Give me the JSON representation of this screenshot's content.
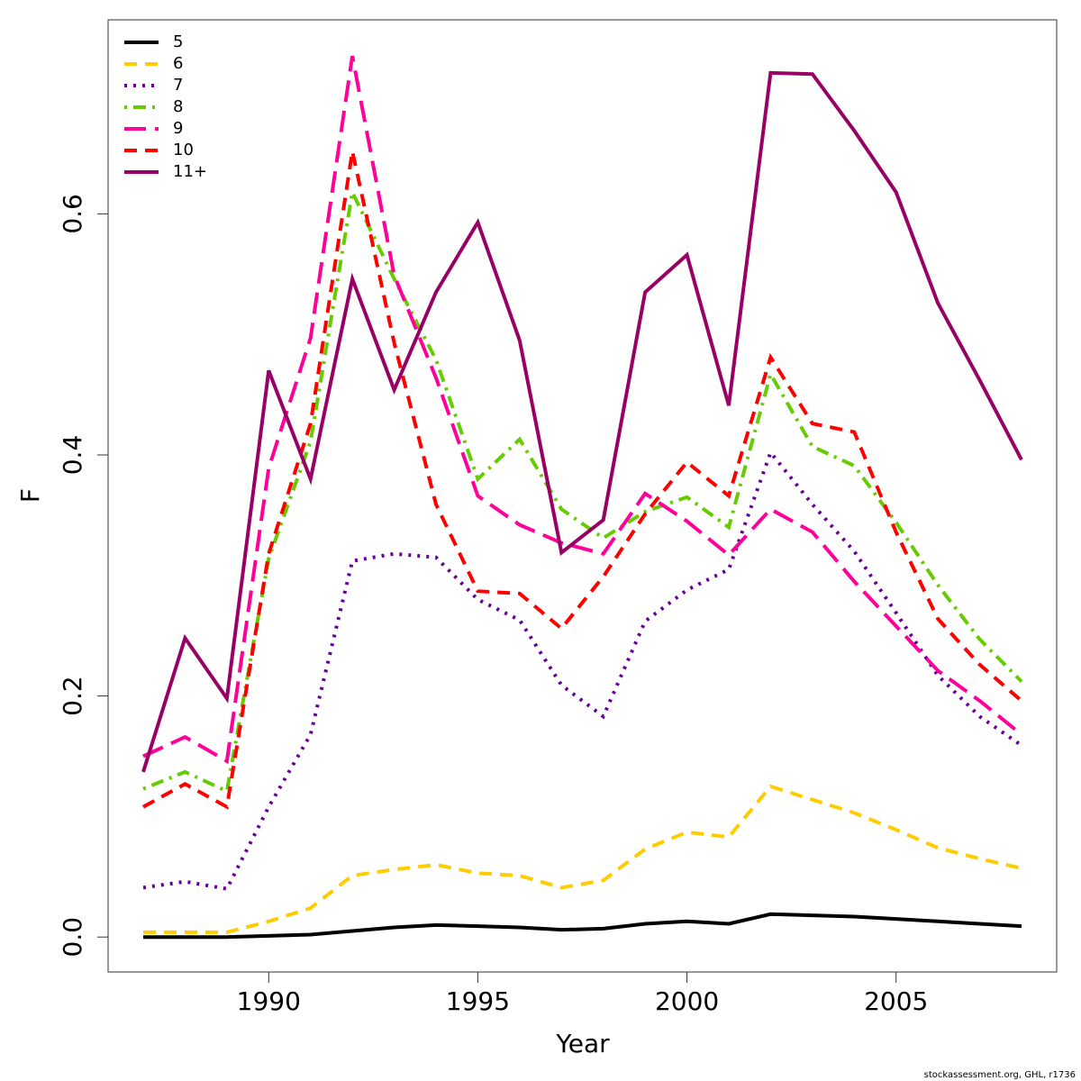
{
  "chart_data": {
    "type": "line",
    "x_label": "Year",
    "y_label": "F",
    "footer": "stockassessment.org, GHL, r1736",
    "x": [
      1987,
      1988,
      1989,
      1990,
      1991,
      1992,
      1993,
      1994,
      1995,
      1996,
      1997,
      1998,
      1999,
      2000,
      2001,
      2002,
      2003,
      2004,
      2005,
      2006,
      2007,
      2008
    ],
    "series": [
      {
        "name": "5",
        "color": "#000000",
        "linestyle": "solid",
        "values": [
          0,
          0,
          0,
          0.001,
          0.002,
          0.005,
          0.008,
          0.01,
          0.009,
          0.008,
          0.006,
          0.007,
          0.011,
          0.013,
          0.011,
          0.019,
          0.018,
          0.017,
          0.015,
          0.013,
          0.011,
          0.009
        ]
      },
      {
        "name": "6",
        "color": "#ffcc00",
        "linestyle": "dashed",
        "values": [
          0.004,
          0.004,
          0.004,
          0.013,
          0.024,
          0.051,
          0.056,
          0.06,
          0.053,
          0.051,
          0.041,
          0.047,
          0.073,
          0.087,
          0.083,
          0.125,
          0.114,
          0.103,
          0.089,
          0.074,
          0.065,
          0.057
        ]
      },
      {
        "name": "7",
        "color": "#660099",
        "linestyle": "dotted",
        "values": [
          0.041,
          0.046,
          0.04,
          0.108,
          0.168,
          0.312,
          0.318,
          0.315,
          0.28,
          0.263,
          0.209,
          0.183,
          0.262,
          0.288,
          0.305,
          0.402,
          0.359,
          0.32,
          0.269,
          0.217,
          0.183,
          0.159
        ]
      },
      {
        "name": "8",
        "color": "#66cc00",
        "linestyle": "dashdot",
        "values": [
          0.123,
          0.137,
          0.121,
          0.314,
          0.411,
          0.618,
          0.546,
          0.479,
          0.38,
          0.413,
          0.355,
          0.331,
          0.353,
          0.365,
          0.34,
          0.467,
          0.407,
          0.391,
          0.344,
          0.292,
          0.247,
          0.212
        ]
      },
      {
        "name": "9",
        "color": "#ff0099",
        "linestyle": "longdash",
        "values": [
          0.15,
          0.166,
          0.146,
          0.389,
          0.497,
          0.731,
          0.549,
          0.464,
          0.366,
          0.342,
          0.327,
          0.318,
          0.368,
          0.345,
          0.317,
          0.355,
          0.336,
          0.295,
          0.258,
          0.221,
          0.196,
          0.168
        ]
      },
      {
        "name": "10",
        "color": "#ff0000",
        "linestyle": "dashed",
        "values": [
          0.108,
          0.127,
          0.108,
          0.318,
          0.426,
          0.652,
          0.493,
          0.359,
          0.287,
          0.285,
          0.256,
          0.299,
          0.351,
          0.394,
          0.366,
          0.481,
          0.426,
          0.419,
          0.336,
          0.264,
          0.226,
          0.196
        ]
      },
      {
        "name": "11+",
        "color": "#990066",
        "linestyle": "solid",
        "values": [
          0.137,
          0.248,
          0.198,
          0.47,
          0.38,
          0.546,
          0.454,
          0.535,
          0.593,
          0.495,
          0.319,
          0.346,
          0.535,
          0.566,
          0.441,
          0.717,
          0.716,
          0.669,
          0.618,
          0.526,
          0.462,
          0.396
        ]
      }
    ],
    "xlim": [
      1986.16,
      2008.84
    ],
    "xticks": [
      1990,
      1995,
      2000,
      2005
    ],
    "ylim": [
      -0.029,
      0.761
    ],
    "yticks": [
      {
        "value": 0,
        "label": "0.0"
      },
      0.2,
      0.4,
      0.6
    ],
    "legend": "top-left"
  }
}
